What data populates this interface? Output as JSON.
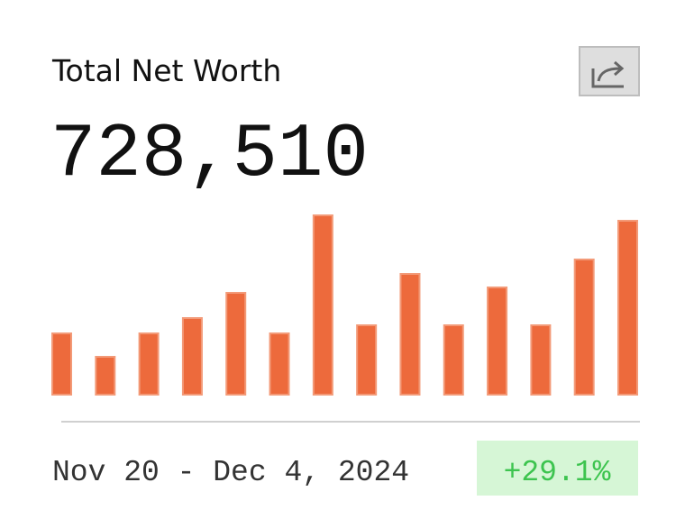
{
  "chart_data": {
    "type": "bar",
    "title": "Total Net Worth",
    "headline": "728,510",
    "values": [
      68,
      42,
      68,
      85,
      113,
      68,
      199,
      77,
      134,
      77,
      119,
      77,
      150,
      193
    ],
    "color": "#ed6a3c",
    "date_range": "Nov 20 - Dec 4, 2024",
    "change": "+29.1%"
  }
}
